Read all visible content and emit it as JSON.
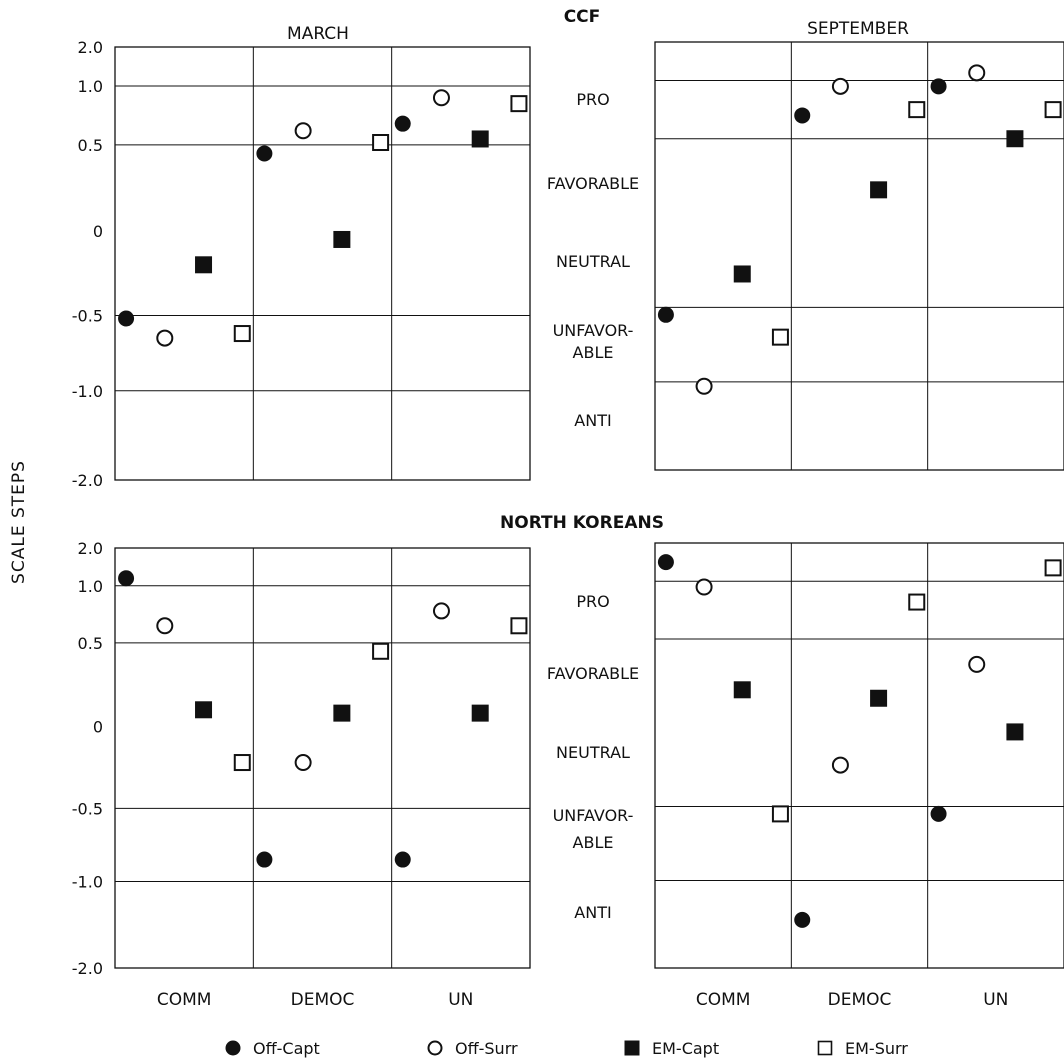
{
  "y_axis_label": "SCALE STEPS",
  "scale_labels": [
    "PRO",
    "FAVORABLE",
    "NEUTRAL",
    "UNFAVOR-\nABLE",
    "ANTI"
  ],
  "colors": {
    "ink": "#111111",
    "paper": "#ffffff"
  },
  "chart_data": [
    {
      "type": "scatter",
      "group": "CCF",
      "month": "MARCH",
      "categories": [
        "COMM",
        "DEMOC",
        "UN"
      ],
      "y_ticks": [
        "2.0",
        "1.0",
        "0.5",
        "0",
        "-0.5",
        "-1.0",
        "-2.0"
      ],
      "ylim": [
        -2.0,
        2.0
      ],
      "series": [
        {
          "name": "Off-Capt",
          "values": [
            -0.52,
            0.45,
            0.68
          ]
        },
        {
          "name": "Off-Surr",
          "values": [
            -0.65,
            0.62,
            0.9
          ]
        },
        {
          "name": "EM-Capt",
          "values": [
            -0.2,
            -0.05,
            0.55
          ]
        },
        {
          "name": "EM-Surr",
          "values": [
            -0.62,
            0.52,
            0.85
          ]
        }
      ]
    },
    {
      "type": "scatter",
      "group": "CCF",
      "month": "SEPTEMBER",
      "categories": [
        "COMM",
        "DEMOC",
        "UN"
      ],
      "y_ticks": [],
      "ylim": [
        -2.0,
        2.0
      ],
      "series": [
        {
          "name": "Off-Capt",
          "values": [
            -0.55,
            0.7,
            0.95
          ]
        },
        {
          "name": "Off-Surr",
          "values": [
            -1.05,
            0.95,
            1.2
          ]
        },
        {
          "name": "EM-Capt",
          "values": [
            -0.3,
            0.2,
            0.5
          ]
        },
        {
          "name": "EM-Surr",
          "values": [
            -0.7,
            0.75,
            0.75
          ]
        }
      ]
    },
    {
      "type": "scatter",
      "group": "NORTH KOREANS",
      "month": "",
      "categories": [
        "COMM",
        "DEMOC",
        "UN"
      ],
      "y_ticks": [
        "2.0",
        "1.0",
        "0.5",
        "0",
        "-0.5",
        "-1.0",
        "-2.0"
      ],
      "ylim": [
        -2.0,
        2.0
      ],
      "series": [
        {
          "name": "Off-Capt",
          "values": [
            1.2,
            -0.85,
            -0.85
          ]
        },
        {
          "name": "Off-Surr",
          "values": [
            0.65,
            -0.22,
            0.78
          ]
        },
        {
          "name": "EM-Capt",
          "values": [
            0.1,
            0.08,
            0.08
          ]
        },
        {
          "name": "EM-Surr",
          "values": [
            -0.22,
            0.45,
            0.65
          ]
        }
      ]
    },
    {
      "type": "scatter",
      "group": "NORTH KOREANS",
      "month": "",
      "categories": [
        "COMM",
        "DEMOC",
        "UN"
      ],
      "y_ticks": [],
      "ylim": [
        -2.0,
        2.0
      ],
      "series": [
        {
          "name": "Off-Capt",
          "values": [
            1.5,
            -1.45,
            -0.55
          ]
        },
        {
          "name": "Off-Surr",
          "values": [
            0.95,
            -0.25,
            0.35
          ]
        },
        {
          "name": "EM-Capt",
          "values": [
            0.2,
            0.15,
            -0.05
          ]
        },
        {
          "name": "EM-Surr",
          "values": [
            -0.55,
            0.82,
            1.35
          ]
        }
      ]
    }
  ],
  "legend": [
    {
      "name": "Off-Capt",
      "marker": "filled-circle"
    },
    {
      "name": "Off-Surr",
      "marker": "open-circle"
    },
    {
      "name": "EM-Capt",
      "marker": "filled-square"
    },
    {
      "name": "EM-Surr",
      "marker": "open-square"
    }
  ]
}
